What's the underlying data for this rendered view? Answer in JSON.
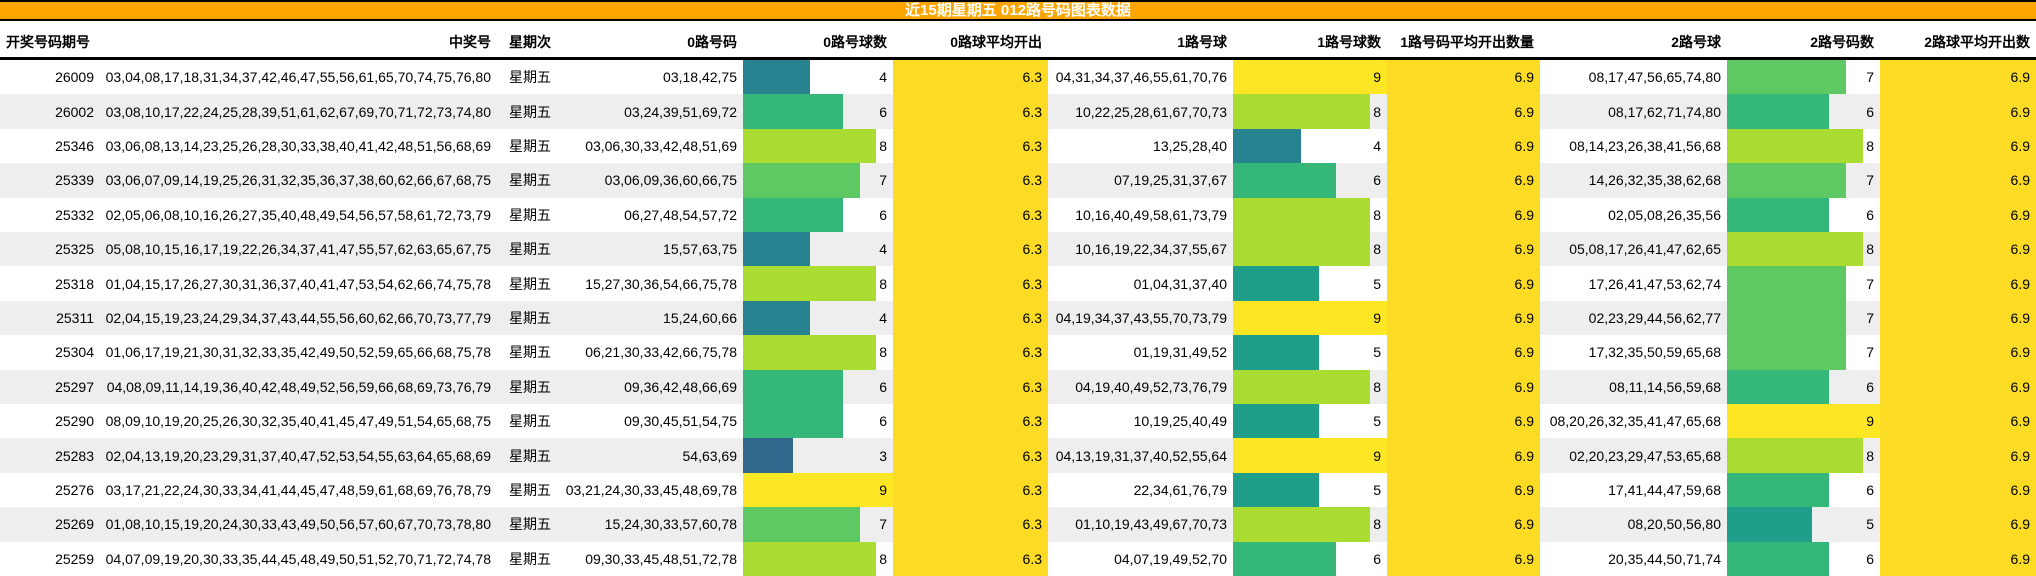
{
  "title": "近15期星期五 012路号码图表数据",
  "columns": [
    "开奖号码期号",
    "中奖号",
    "星期次",
    "0路号码",
    "0路号球数",
    "0路球平均开出",
    "1路号球",
    "1路号球数",
    "1路号码平均开出数量",
    "2路号球",
    "2路号码数",
    "2路球平均开出数"
  ],
  "colors": {
    "title_bg": "#ffa500",
    "title_text": "#ffffff",
    "row_alt": "#eeeeee",
    "avg_column": "#fcdb25",
    "count_scale": {
      "3": "#31688e",
      "4": "#26828e",
      "5": "#1f9e89",
      "6": "#35b779",
      "7": "#5ec962",
      "8": "#aadc32",
      "9": "#fde725"
    }
  },
  "count_scale_max": 9,
  "rows": [
    {
      "period": "26009",
      "winning": "03,04,08,17,18,31,34,37,42,46,47,55,56,61,65,70,74,75,76,80",
      "weekday": "星期五",
      "r0": {
        "nums": "03,18,42,75",
        "count": 4
      },
      "avg0": "6.3",
      "r1": {
        "nums": "04,31,34,37,46,55,61,70,76",
        "count": 9
      },
      "avg1": "6.9",
      "r2": {
        "nums": "08,17,47,56,65,74,80",
        "count": 7
      },
      "avg2": "6.9"
    },
    {
      "period": "26002",
      "winning": "03,08,10,17,22,24,25,28,39,51,61,62,67,69,70,71,72,73,74,80",
      "weekday": "星期五",
      "r0": {
        "nums": "03,24,39,51,69,72",
        "count": 6
      },
      "avg0": "6.3",
      "r1": {
        "nums": "10,22,25,28,61,67,70,73",
        "count": 8
      },
      "avg1": "6.9",
      "r2": {
        "nums": "08,17,62,71,74,80",
        "count": 6
      },
      "avg2": "6.9"
    },
    {
      "period": "25346",
      "winning": "03,06,08,13,14,23,25,26,28,30,33,38,40,41,42,48,51,56,68,69",
      "weekday": "星期五",
      "r0": {
        "nums": "03,06,30,33,42,48,51,69",
        "count": 8
      },
      "avg0": "6.3",
      "r1": {
        "nums": "13,25,28,40",
        "count": 4
      },
      "avg1": "6.9",
      "r2": {
        "nums": "08,14,23,26,38,41,56,68",
        "count": 8
      },
      "avg2": "6.9"
    },
    {
      "period": "25339",
      "winning": "03,06,07,09,14,19,25,26,31,32,35,36,37,38,60,62,66,67,68,75",
      "weekday": "星期五",
      "r0": {
        "nums": "03,06,09,36,60,66,75",
        "count": 7
      },
      "avg0": "6.3",
      "r1": {
        "nums": "07,19,25,31,37,67",
        "count": 6
      },
      "avg1": "6.9",
      "r2": {
        "nums": "14,26,32,35,38,62,68",
        "count": 7
      },
      "avg2": "6.9"
    },
    {
      "period": "25332",
      "winning": "02,05,06,08,10,16,26,27,35,40,48,49,54,56,57,58,61,72,73,79",
      "weekday": "星期五",
      "r0": {
        "nums": "06,27,48,54,57,72",
        "count": 6
      },
      "avg0": "6.3",
      "r1": {
        "nums": "10,16,40,49,58,61,73,79",
        "count": 8
      },
      "avg1": "6.9",
      "r2": {
        "nums": "02,05,08,26,35,56",
        "count": 6
      },
      "avg2": "6.9"
    },
    {
      "period": "25325",
      "winning": "05,08,10,15,16,17,19,22,26,34,37,41,47,55,57,62,63,65,67,75",
      "weekday": "星期五",
      "r0": {
        "nums": "15,57,63,75",
        "count": 4
      },
      "avg0": "6.3",
      "r1": {
        "nums": "10,16,19,22,34,37,55,67",
        "count": 8
      },
      "avg1": "6.9",
      "r2": {
        "nums": "05,08,17,26,41,47,62,65",
        "count": 8
      },
      "avg2": "6.9"
    },
    {
      "period": "25318",
      "winning": "01,04,15,17,26,27,30,31,36,37,40,41,47,53,54,62,66,74,75,78",
      "weekday": "星期五",
      "r0": {
        "nums": "15,27,30,36,54,66,75,78",
        "count": 8
      },
      "avg0": "6.3",
      "r1": {
        "nums": "01,04,31,37,40",
        "count": 5
      },
      "avg1": "6.9",
      "r2": {
        "nums": "17,26,41,47,53,62,74",
        "count": 7
      },
      "avg2": "6.9"
    },
    {
      "period": "25311",
      "winning": "02,04,15,19,23,24,29,34,37,43,44,55,56,60,62,66,70,73,77,79",
      "weekday": "星期五",
      "r0": {
        "nums": "15,24,60,66",
        "count": 4
      },
      "avg0": "6.3",
      "r1": {
        "nums": "04,19,34,37,43,55,70,73,79",
        "count": 9
      },
      "avg1": "6.9",
      "r2": {
        "nums": "02,23,29,44,56,62,77",
        "count": 7
      },
      "avg2": "6.9"
    },
    {
      "period": "25304",
      "winning": "01,06,17,19,21,30,31,32,33,35,42,49,50,52,59,65,66,68,75,78",
      "weekday": "星期五",
      "r0": {
        "nums": "06,21,30,33,42,66,75,78",
        "count": 8
      },
      "avg0": "6.3",
      "r1": {
        "nums": "01,19,31,49,52",
        "count": 5
      },
      "avg1": "6.9",
      "r2": {
        "nums": "17,32,35,50,59,65,68",
        "count": 7
      },
      "avg2": "6.9"
    },
    {
      "period": "25297",
      "winning": "04,08,09,11,14,19,36,40,42,48,49,52,56,59,66,68,69,73,76,79",
      "weekday": "星期五",
      "r0": {
        "nums": "09,36,42,48,66,69",
        "count": 6
      },
      "avg0": "6.3",
      "r1": {
        "nums": "04,19,40,49,52,73,76,79",
        "count": 8
      },
      "avg1": "6.9",
      "r2": {
        "nums": "08,11,14,56,59,68",
        "count": 6
      },
      "avg2": "6.9"
    },
    {
      "period": "25290",
      "winning": "08,09,10,19,20,25,26,30,32,35,40,41,45,47,49,51,54,65,68,75",
      "weekday": "星期五",
      "r0": {
        "nums": "09,30,45,51,54,75",
        "count": 6
      },
      "avg0": "6.3",
      "r1": {
        "nums": "10,19,25,40,49",
        "count": 5
      },
      "avg1": "6.9",
      "r2": {
        "nums": "08,20,26,32,35,41,47,65,68",
        "count": 9
      },
      "avg2": "6.9"
    },
    {
      "period": "25283",
      "winning": "02,04,13,19,20,23,29,31,37,40,47,52,53,54,55,63,64,65,68,69",
      "weekday": "星期五",
      "r0": {
        "nums": "54,63,69",
        "count": 3
      },
      "avg0": "6.3",
      "r1": {
        "nums": "04,13,19,31,37,40,52,55,64",
        "count": 9
      },
      "avg1": "6.9",
      "r2": {
        "nums": "02,20,23,29,47,53,65,68",
        "count": 8
      },
      "avg2": "6.9"
    },
    {
      "period": "25276",
      "winning": "03,17,21,22,24,30,33,34,41,44,45,47,48,59,61,68,69,76,78,79",
      "weekday": "星期五",
      "r0": {
        "nums": "03,21,24,30,33,45,48,69,78",
        "count": 9
      },
      "avg0": "6.3",
      "r1": {
        "nums": "22,34,61,76,79",
        "count": 5
      },
      "avg1": "6.9",
      "r2": {
        "nums": "17,41,44,47,59,68",
        "count": 6
      },
      "avg2": "6.9"
    },
    {
      "period": "25269",
      "winning": "01,08,10,15,19,20,24,30,33,43,49,50,56,57,60,67,70,73,78,80",
      "weekday": "星期五",
      "r0": {
        "nums": "15,24,30,33,57,60,78",
        "count": 7
      },
      "avg0": "6.3",
      "r1": {
        "nums": "01,10,19,43,49,67,70,73",
        "count": 8
      },
      "avg1": "6.9",
      "r2": {
        "nums": "08,20,50,56,80",
        "count": 5
      },
      "avg2": "6.9"
    },
    {
      "period": "25259",
      "winning": "04,07,09,19,20,30,33,35,44,45,48,49,50,51,52,70,71,72,74,78",
      "weekday": "星期五",
      "r0": {
        "nums": "09,30,33,45,48,51,72,78",
        "count": 8
      },
      "avg0": "6.3",
      "r1": {
        "nums": "04,07,19,49,52,70",
        "count": 6
      },
      "avg1": "6.9",
      "r2": {
        "nums": "20,35,44,50,71,74",
        "count": 6
      },
      "avg2": "6.9"
    }
  ],
  "chart_data": {
    "type": "table",
    "title": "近15期星期五 012路号码图表数据",
    "categories": [
      "26009",
      "26002",
      "25346",
      "25339",
      "25332",
      "25325",
      "25318",
      "25311",
      "25304",
      "25297",
      "25290",
      "25283",
      "25276",
      "25269",
      "25259"
    ],
    "series": [
      {
        "name": "0路号球数",
        "values": [
          4,
          6,
          8,
          7,
          6,
          4,
          8,
          4,
          8,
          6,
          6,
          3,
          9,
          7,
          8
        ]
      },
      {
        "name": "1路号球数",
        "values": [
          9,
          8,
          4,
          6,
          8,
          8,
          5,
          9,
          5,
          8,
          5,
          9,
          5,
          8,
          6
        ]
      },
      {
        "name": "2路号码数",
        "values": [
          7,
          6,
          8,
          7,
          6,
          8,
          7,
          7,
          7,
          6,
          9,
          8,
          6,
          5,
          6
        ]
      }
    ],
    "averages": {
      "0路球平均开出": 6.3,
      "1路号码平均开出数量": 6.9,
      "2路球平均开出数": 6.9
    },
    "value_range": [
      0,
      9
    ],
    "grid": false,
    "legend_position": "none"
  }
}
